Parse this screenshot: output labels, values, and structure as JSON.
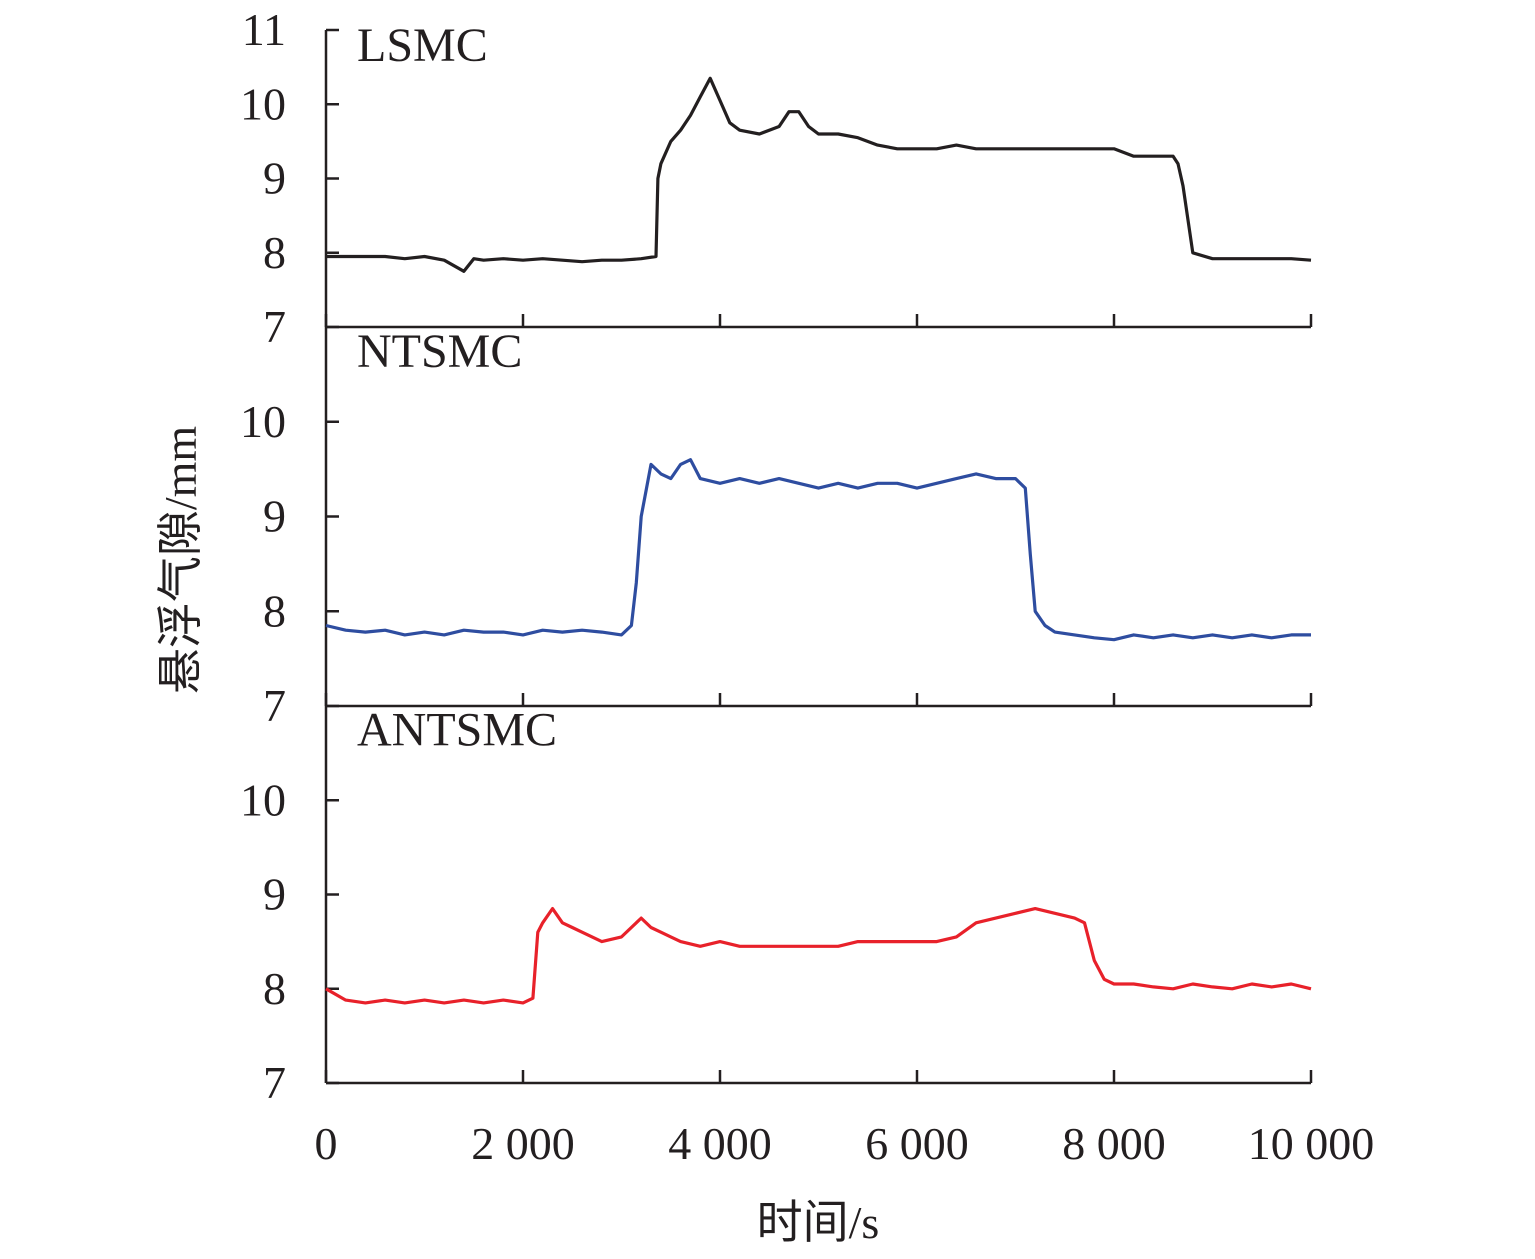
{
  "chart_data": {
    "type": "line",
    "xlabel": "时间/s",
    "ylabel": "悬浮气隙/mm",
    "xlim": [
      0,
      10000
    ],
    "x_ticks": [
      "0",
      "2 000",
      "4 000",
      "6 000",
      "8 000",
      "10 000"
    ],
    "x_tick_values": [
      0,
      2000,
      4000,
      6000,
      8000,
      10000
    ],
    "grid": false,
    "panels": [
      {
        "label": "LSMC",
        "color": "#231f20",
        "ylim": [
          7,
          11
        ],
        "y_ticks": [
          "7",
          "8",
          "9",
          "10",
          "11"
        ],
        "y_tick_values": [
          7,
          8,
          9,
          10,
          11
        ],
        "x": [
          0,
          200,
          400,
          600,
          800,
          1000,
          1200,
          1400,
          1500,
          1600,
          1800,
          2000,
          2200,
          2400,
          2600,
          2800,
          3000,
          3200,
          3350,
          3370,
          3400,
          3500,
          3600,
          3700,
          3800,
          3900,
          4000,
          4100,
          4200,
          4400,
          4600,
          4700,
          4800,
          4900,
          5000,
          5200,
          5400,
          5600,
          5800,
          6000,
          6200,
          6400,
          6600,
          6800,
          7000,
          7200,
          7400,
          7600,
          7800,
          8000,
          8200,
          8400,
          8600,
          8650,
          8700,
          8800,
          9000,
          9200,
          9400,
          9600,
          9800,
          10000
        ],
        "y": [
          7.95,
          7.95,
          7.95,
          7.95,
          7.92,
          7.95,
          7.9,
          7.75,
          7.92,
          7.9,
          7.92,
          7.9,
          7.92,
          7.9,
          7.88,
          7.9,
          7.9,
          7.92,
          7.95,
          9.0,
          9.2,
          9.5,
          9.65,
          9.85,
          10.1,
          10.35,
          10.05,
          9.75,
          9.65,
          9.6,
          9.7,
          9.9,
          9.9,
          9.7,
          9.6,
          9.6,
          9.55,
          9.45,
          9.4,
          9.4,
          9.4,
          9.45,
          9.4,
          9.4,
          9.4,
          9.4,
          9.4,
          9.4,
          9.4,
          9.4,
          9.3,
          9.3,
          9.3,
          9.2,
          8.9,
          8.0,
          7.92,
          7.92,
          7.92,
          7.92,
          7.92,
          7.9
        ]
      },
      {
        "label": "NTSMC",
        "color": "#2e4da0",
        "ylim": [
          7,
          11
        ],
        "y_ticks": [
          "7",
          "8",
          "9",
          "10"
        ],
        "y_tick_values": [
          7,
          8,
          9,
          10
        ],
        "x": [
          0,
          200,
          400,
          600,
          800,
          1000,
          1200,
          1400,
          1600,
          1800,
          2000,
          2200,
          2400,
          2600,
          2800,
          3000,
          3100,
          3150,
          3200,
          3300,
          3400,
          3500,
          3600,
          3700,
          3800,
          4000,
          4200,
          4400,
          4600,
          4800,
          5000,
          5200,
          5400,
          5600,
          5800,
          6000,
          6200,
          6400,
          6600,
          6800,
          7000,
          7100,
          7150,
          7200,
          7300,
          7400,
          7600,
          7800,
          8000,
          8200,
          8400,
          8600,
          8800,
          9000,
          9200,
          9400,
          9600,
          9800,
          10000
        ],
        "y": [
          7.85,
          7.8,
          7.78,
          7.8,
          7.75,
          7.78,
          7.75,
          7.8,
          7.78,
          7.78,
          7.75,
          7.8,
          7.78,
          7.8,
          7.78,
          7.75,
          7.85,
          8.3,
          9.0,
          9.55,
          9.45,
          9.4,
          9.55,
          9.6,
          9.4,
          9.35,
          9.4,
          9.35,
          9.4,
          9.35,
          9.3,
          9.35,
          9.3,
          9.35,
          9.35,
          9.3,
          9.35,
          9.4,
          9.45,
          9.4,
          9.4,
          9.3,
          8.6,
          8.0,
          7.85,
          7.78,
          7.75,
          7.72,
          7.7,
          7.75,
          7.72,
          7.75,
          7.72,
          7.75,
          7.72,
          7.75,
          7.72,
          7.75,
          7.75
        ]
      },
      {
        "label": "ANTSMC",
        "color": "#e8212a",
        "ylim": [
          7,
          11
        ],
        "y_ticks": [
          "7",
          "8",
          "9",
          "10"
        ],
        "y_tick_values": [
          7,
          8,
          9,
          10
        ],
        "x": [
          0,
          200,
          400,
          600,
          800,
          1000,
          1200,
          1400,
          1600,
          1800,
          2000,
          2100,
          2150,
          2200,
          2300,
          2400,
          2500,
          2600,
          2800,
          3000,
          3200,
          3300,
          3400,
          3500,
          3600,
          3800,
          4000,
          4200,
          4400,
          4600,
          4800,
          5000,
          5200,
          5400,
          5600,
          5800,
          6000,
          6200,
          6400,
          6600,
          6800,
          7000,
          7200,
          7400,
          7600,
          7700,
          7800,
          7900,
          8000,
          8200,
          8400,
          8600,
          8800,
          9000,
          9200,
          9400,
          9600,
          9800,
          10000
        ],
        "y": [
          8.0,
          7.88,
          7.85,
          7.88,
          7.85,
          7.88,
          7.85,
          7.88,
          7.85,
          7.88,
          7.85,
          7.9,
          8.6,
          8.7,
          8.85,
          8.7,
          8.65,
          8.6,
          8.5,
          8.55,
          8.75,
          8.65,
          8.6,
          8.55,
          8.5,
          8.45,
          8.5,
          8.45,
          8.45,
          8.45,
          8.45,
          8.45,
          8.45,
          8.5,
          8.5,
          8.5,
          8.5,
          8.5,
          8.55,
          8.7,
          8.75,
          8.8,
          8.85,
          8.8,
          8.75,
          8.7,
          8.3,
          8.1,
          8.05,
          8.05,
          8.02,
          8.0,
          8.05,
          8.02,
          8.0,
          8.05,
          8.02,
          8.05,
          8.0
        ]
      }
    ]
  }
}
